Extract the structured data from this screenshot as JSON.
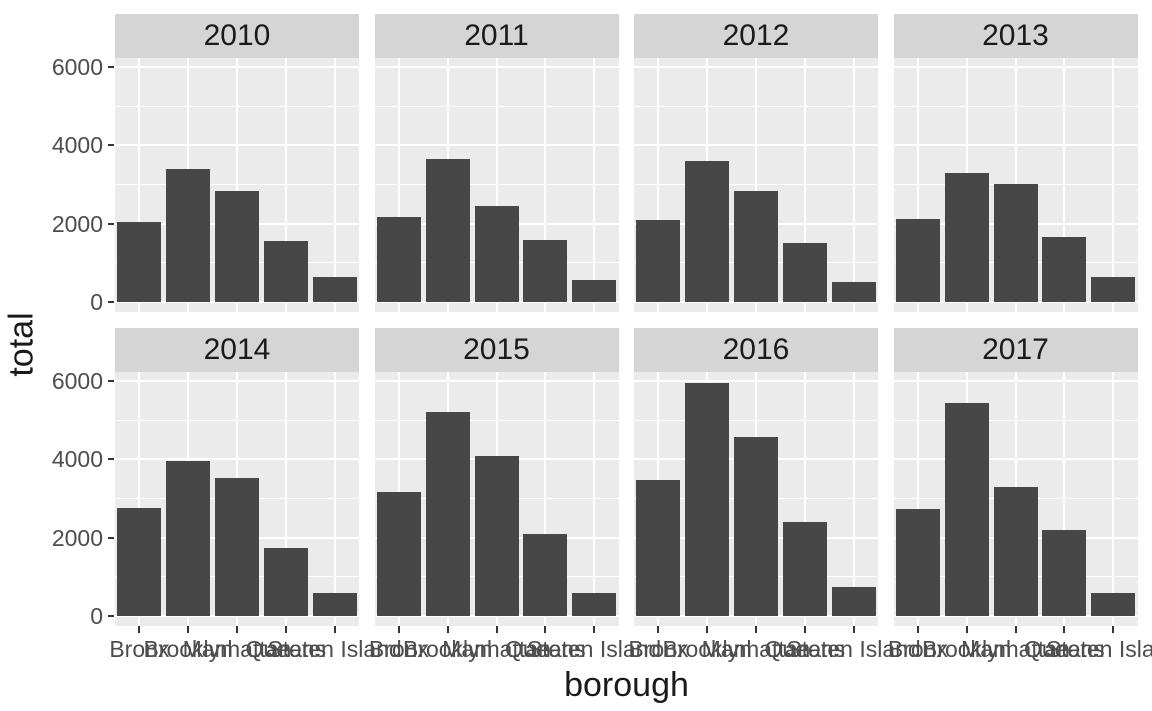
{
  "figure": {
    "background": "#ffffff",
    "panel_background": "#ebebeb",
    "strip_background": "#d5d5d5",
    "bar_fill": "#474747",
    "grid_color": "#ffffff",
    "axis_text_color": "#4d4d4d",
    "title_text_color": "#1a1a1a"
  },
  "chart_data": {
    "type": "bar",
    "title": "",
    "xlabel": "borough",
    "ylabel": "total",
    "facet_variable": "year",
    "categories": [
      "Bronx",
      "Brooklyn",
      "Manhattan",
      "Queens",
      "Staten Island"
    ],
    "ylim": [
      0,
      6250
    ],
    "y_major_ticks": [
      0,
      2000,
      4000,
      6000
    ],
    "y_minor_ticks": [
      1000,
      3000,
      5000
    ],
    "grid": "on",
    "legend_position": "none",
    "facets": [
      {
        "label": "2010",
        "values": [
          2040,
          3390,
          2840,
          1560,
          630
        ]
      },
      {
        "label": "2011",
        "values": [
          2170,
          3640,
          2450,
          1580,
          550
        ]
      },
      {
        "label": "2012",
        "values": [
          2100,
          3590,
          2840,
          1500,
          520
        ]
      },
      {
        "label": "2013",
        "values": [
          2130,
          3300,
          3010,
          1670,
          650
        ]
      },
      {
        "label": "2014",
        "values": [
          2760,
          3970,
          3520,
          1740,
          600
        ]
      },
      {
        "label": "2015",
        "values": [
          3170,
          5220,
          4080,
          2090,
          590
        ]
      },
      {
        "label": "2016",
        "values": [
          3460,
          5950,
          4570,
          2390,
          730
        ]
      },
      {
        "label": "2017",
        "values": [
          2740,
          5440,
          3300,
          2190,
          580
        ]
      }
    ]
  }
}
